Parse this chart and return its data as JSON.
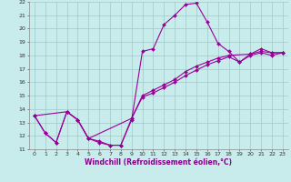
{
  "xlabel": "Windchill (Refroidissement éolien,°C)",
  "xlim": [
    -0.5,
    23.5
  ],
  "ylim": [
    11,
    22
  ],
  "xticks": [
    0,
    1,
    2,
    3,
    4,
    5,
    6,
    7,
    8,
    9,
    10,
    11,
    12,
    13,
    14,
    15,
    16,
    17,
    18,
    19,
    20,
    21,
    22,
    23
  ],
  "yticks": [
    11,
    12,
    13,
    14,
    15,
    16,
    17,
    18,
    19,
    20,
    21,
    22
  ],
  "background_color": "#c8ecec",
  "line_color": "#990099",
  "grid_color": "#a0c8c8",
  "line1_x": [
    0,
    1,
    2,
    3,
    4,
    5,
    6,
    7,
    8,
    9,
    10,
    11,
    12,
    13,
    14,
    15,
    16,
    17,
    18,
    19,
    20,
    21,
    22,
    23
  ],
  "line1_y": [
    13.5,
    12.2,
    11.5,
    13.8,
    13.2,
    11.8,
    11.5,
    11.3,
    11.3,
    13.2,
    18.3,
    18.5,
    20.3,
    21.0,
    21.8,
    21.9,
    20.5,
    18.9,
    18.3,
    17.5,
    18.1,
    18.5,
    18.2,
    18.2
  ],
  "line2_x": [
    0,
    3,
    4,
    5,
    9,
    10,
    11,
    12,
    13,
    14,
    15,
    16,
    17,
    18,
    20,
    21,
    22,
    23
  ],
  "line2_y": [
    13.5,
    13.8,
    13.2,
    11.8,
    13.3,
    15.0,
    15.4,
    15.8,
    16.2,
    16.8,
    17.2,
    17.5,
    17.8,
    18.0,
    18.1,
    18.3,
    18.2,
    18.2
  ],
  "line3_x": [
    0,
    1,
    2,
    3,
    4,
    5,
    6,
    7,
    8,
    9,
    10,
    11,
    12,
    13,
    14,
    15,
    16,
    17,
    18,
    19,
    20,
    21,
    22,
    23
  ],
  "line3_y": [
    13.5,
    12.2,
    11.5,
    13.8,
    13.2,
    11.8,
    11.6,
    11.3,
    11.3,
    13.3,
    14.9,
    15.2,
    15.6,
    16.0,
    16.5,
    16.9,
    17.3,
    17.6,
    17.9,
    17.5,
    18.0,
    18.2,
    18.0,
    18.2
  ],
  "marker": "D",
  "markersize": 2.0,
  "linewidth": 0.8,
  "tick_fontsize": 4.5,
  "label_fontsize": 5.5
}
